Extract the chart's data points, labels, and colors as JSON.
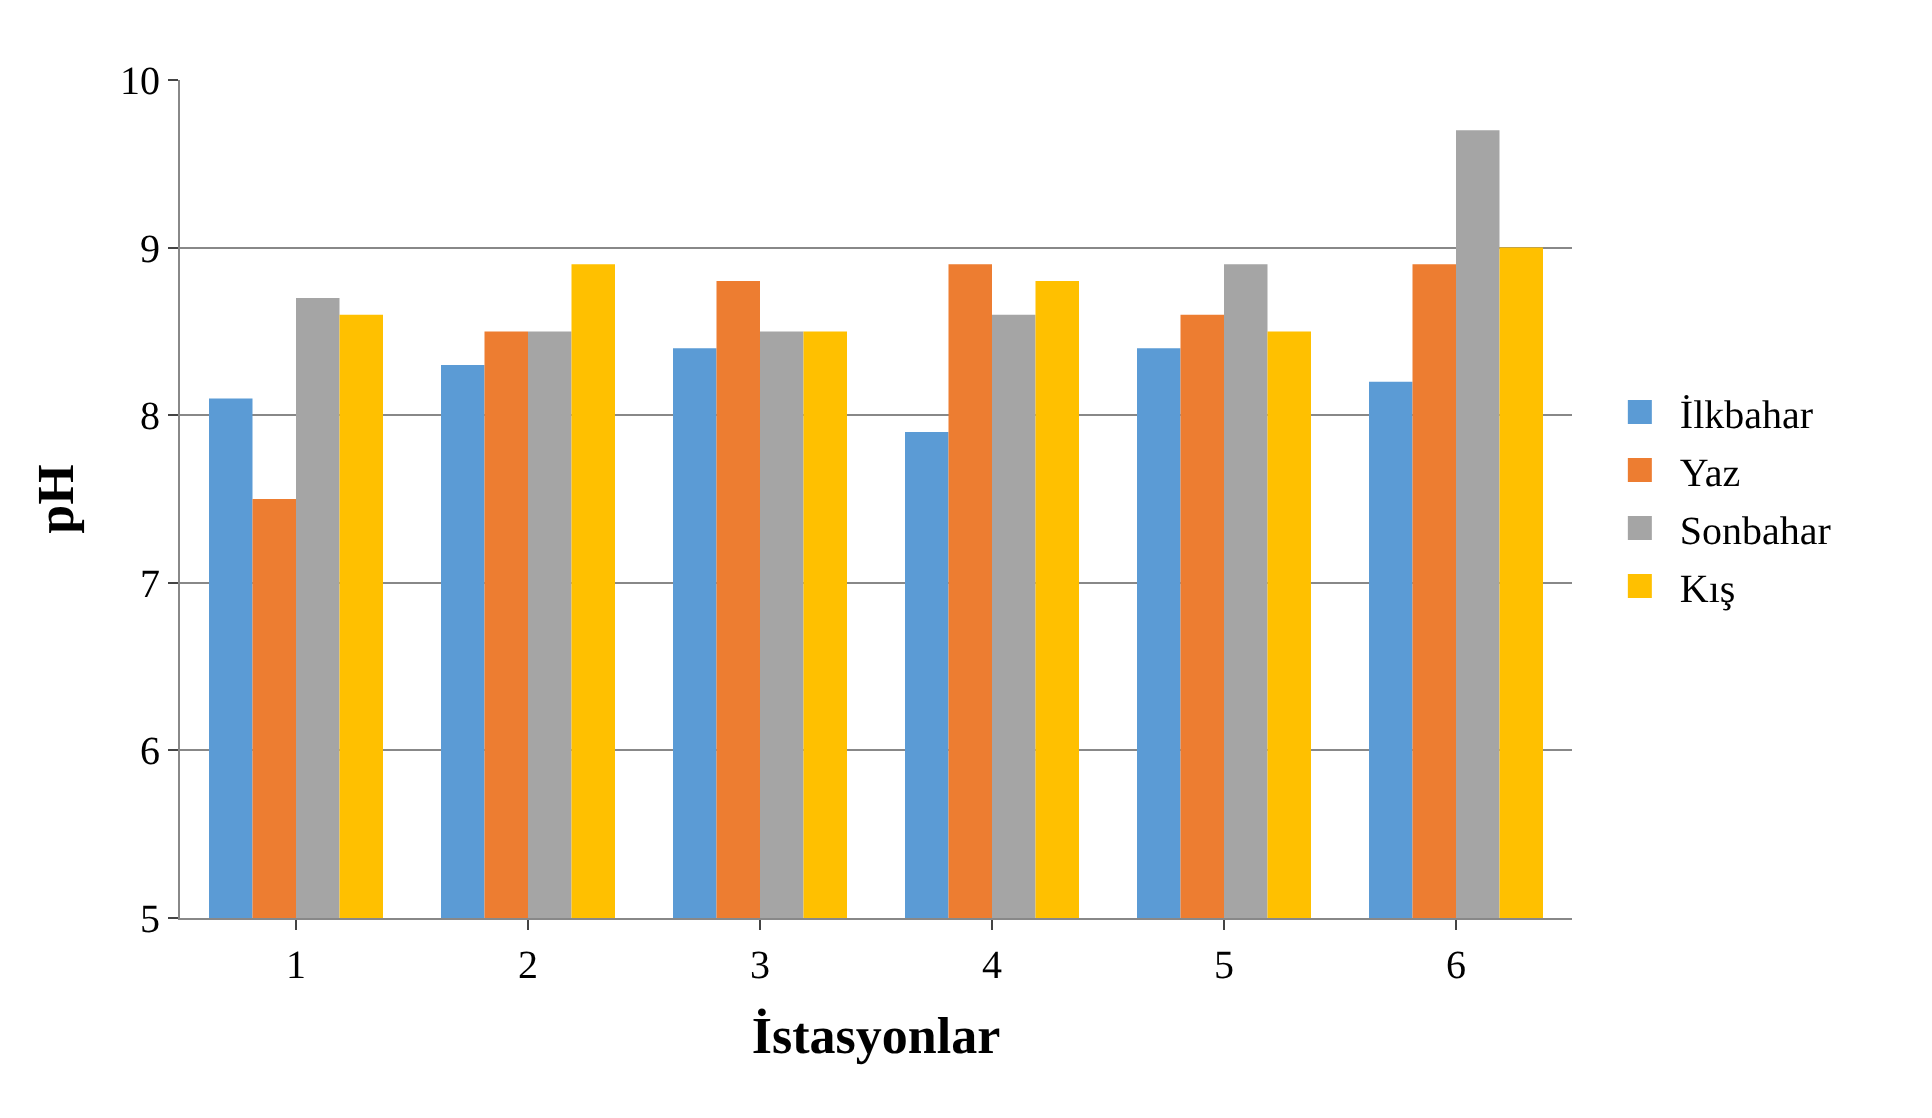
{
  "chart_data": {
    "type": "bar",
    "xlabel": "İstasyonlar",
    "ylabel": "pH",
    "categories": [
      "1",
      "2",
      "3",
      "4",
      "5",
      "6"
    ],
    "series": [
      {
        "name": "İlkbahar",
        "color": "#5b9bd5",
        "values": [
          8.1,
          8.3,
          8.4,
          7.9,
          8.4,
          8.2
        ]
      },
      {
        "name": "Yaz",
        "color": "#ed7d31",
        "values": [
          7.5,
          8.5,
          8.8,
          8.9,
          8.6,
          8.9
        ]
      },
      {
        "name": "Sonbahar",
        "color": "#a5a5a5",
        "values": [
          8.7,
          8.5,
          8.5,
          8.6,
          8.9,
          9.7
        ]
      },
      {
        "name": "Kış",
        "color": "#ffc000",
        "values": [
          8.6,
          8.9,
          8.5,
          8.8,
          8.5,
          9.0
        ]
      }
    ],
    "ylim": [
      5,
      10
    ],
    "yticks": [
      5,
      6,
      7,
      8,
      9,
      10
    ],
    "grid": "y",
    "legend": "right"
  }
}
